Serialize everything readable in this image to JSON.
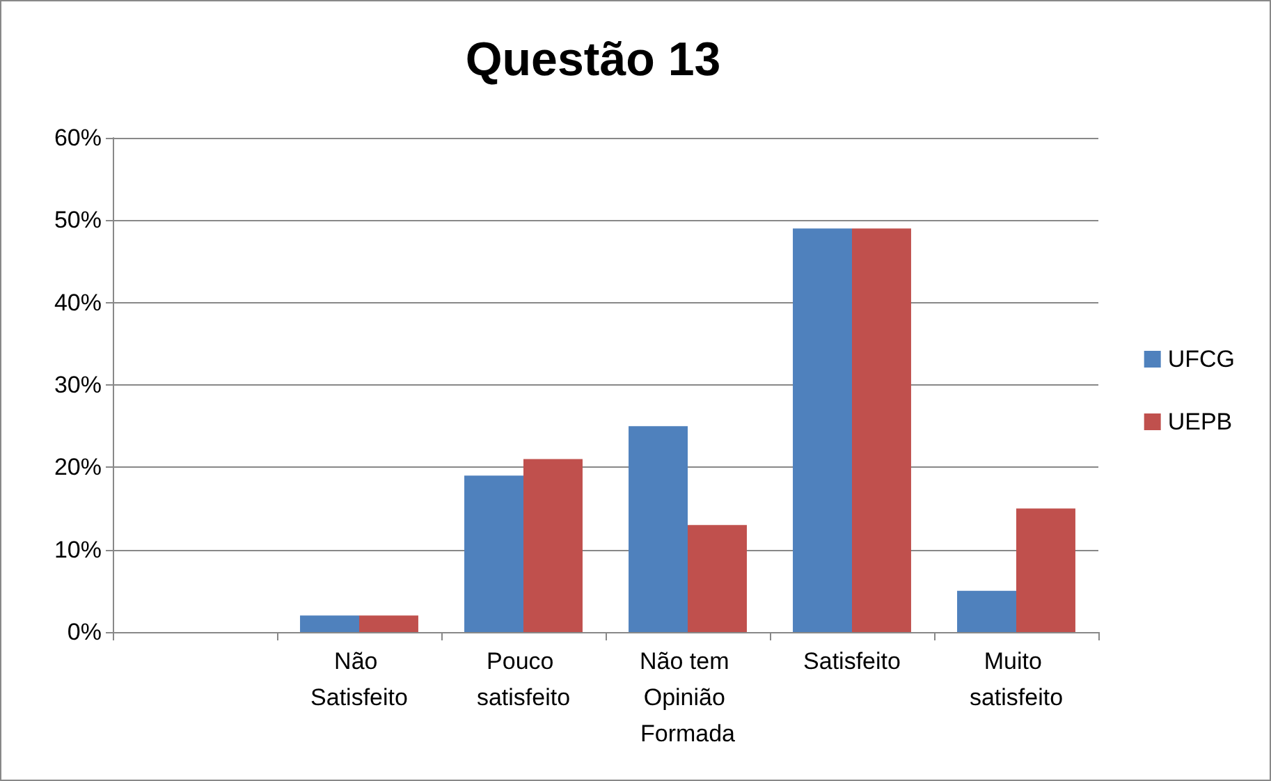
{
  "chart_data": {
    "type": "bar",
    "title": "Questão 13",
    "categories": [
      null,
      "Não Satisfeito",
      "Pouco satisfeito",
      "Não tem Opinião Formada",
      "Satisfeito",
      "Muito satisfeito"
    ],
    "series": [
      {
        "name": "UFCG",
        "color": "#4f81bd",
        "values": [
          null,
          2,
          19,
          25,
          49,
          5
        ]
      },
      {
        "name": "UEPB",
        "color": "#c0504d",
        "values": [
          null,
          2,
          21,
          13,
          49,
          15
        ]
      }
    ],
    "ylim": [
      0,
      60
    ],
    "yticks": [
      {
        "value": 0,
        "label": "0%"
      },
      {
        "value": 10,
        "label": "10%"
      },
      {
        "value": 20,
        "label": "20%"
      },
      {
        "value": 30,
        "label": "30%"
      },
      {
        "value": 40,
        "label": "40%"
      },
      {
        "value": 50,
        "label": "50%"
      },
      {
        "value": 60,
        "label": "60%"
      }
    ],
    "grid": "y",
    "legend": "right"
  }
}
